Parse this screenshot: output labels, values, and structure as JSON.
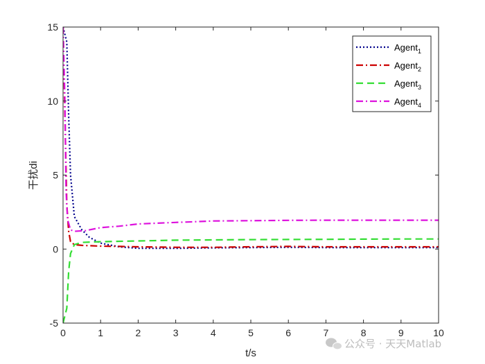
{
  "chart_data": {
    "type": "line",
    "xlabel": "t/s",
    "ylabel": "干扰di",
    "xlim": [
      0,
      10
    ],
    "ylim": [
      -5,
      15
    ],
    "xticks": [
      0,
      1,
      2,
      3,
      4,
      5,
      6,
      7,
      8,
      9,
      10
    ],
    "yticks": [
      -5,
      0,
      5,
      10,
      15
    ],
    "grid": false,
    "legend_position": "top-right",
    "series": [
      {
        "name": "Agent",
        "subscript": "1",
        "color": "#00008b",
        "style": "dotted",
        "x": [
          0,
          0.1,
          0.15,
          0.2,
          0.3,
          0.5,
          0.7,
          1,
          1.5,
          2,
          3,
          4,
          5,
          6,
          7,
          8,
          9,
          10
        ],
        "y": [
          15,
          14,
          9,
          5,
          2.2,
          1.3,
          0.8,
          0.4,
          0.15,
          0.05,
          0.05,
          0.08,
          0.1,
          0.12,
          0.1,
          0.1,
          0.1,
          0.1
        ]
      },
      {
        "name": "Agent",
        "subscript": "2",
        "color": "#cc0000",
        "style": "dashdot",
        "x": [
          0,
          0.05,
          0.1,
          0.15,
          0.2,
          0.3,
          0.5,
          1,
          1.5,
          2,
          3,
          4,
          5,
          6,
          7,
          8,
          9,
          10
        ],
        "y": [
          15,
          9,
          3,
          1.2,
          0.5,
          0.3,
          0.25,
          0.2,
          0.18,
          0.15,
          0.12,
          0.12,
          0.15,
          0.18,
          0.15,
          0.15,
          0.15,
          0.15
        ]
      },
      {
        "name": "Agent",
        "subscript": "3",
        "color": "#33dd33",
        "style": "dashed",
        "x": [
          0,
          0.1,
          0.15,
          0.2,
          0.3,
          0.5,
          1,
          2,
          3,
          4,
          5,
          6,
          7,
          8,
          9,
          10
        ],
        "y": [
          -5,
          -4,
          -1.5,
          -0.3,
          0.3,
          0.45,
          0.5,
          0.55,
          0.6,
          0.62,
          0.64,
          0.65,
          0.66,
          0.67,
          0.68,
          0.68
        ]
      },
      {
        "name": "Agent",
        "subscript": "4",
        "color": "#dd11dd",
        "style": "dashdot",
        "x": [
          0,
          0.05,
          0.08,
          0.12,
          0.2,
          0.3,
          0.6,
          1,
          1.5,
          2,
          2.5,
          3,
          3.5,
          4,
          5,
          6,
          7,
          8,
          9,
          10
        ],
        "y": [
          15,
          10,
          4,
          2,
          1.3,
          1.2,
          1.25,
          1.45,
          1.55,
          1.7,
          1.75,
          1.8,
          1.85,
          1.9,
          1.92,
          1.94,
          1.95,
          1.95,
          1.95,
          1.95
        ]
      }
    ]
  },
  "watermark": {
    "text": "公众号 · 天天Matlab",
    "icon": "wechat-icon"
  }
}
